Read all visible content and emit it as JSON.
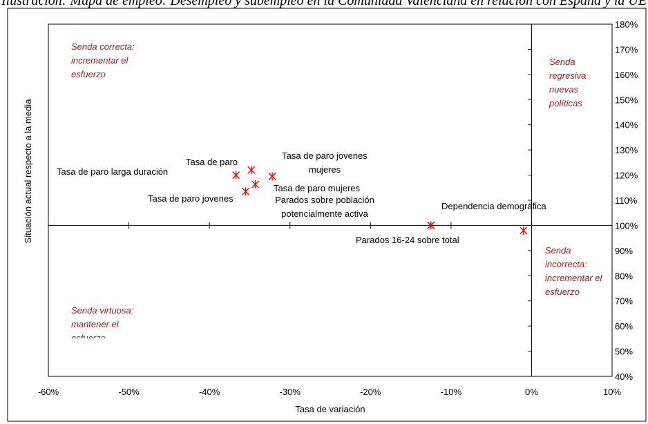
{
  "header_text": "Ilustración: Mapa de empleo: Desempleo y subempleo en la Comunidad Valenciana en relación con España y la UE",
  "chart_data": {
    "type": "scatter",
    "xlabel": "Tasa de variación",
    "ylabel": "Situación actual respecto a la media",
    "xlim": [
      -0.6,
      0.1
    ],
    "ylim": [
      0.4,
      1.8
    ],
    "x_ticks": [
      "-60%",
      "-50%",
      "-40%",
      "-30%",
      "-20%",
      "-10%",
      "0%",
      "10%"
    ],
    "y_ticks": [
      "40%",
      "50%",
      "60%",
      "70%",
      "80%",
      "90%",
      "100%",
      "110%",
      "120%",
      "130%",
      "140%",
      "150%",
      "160%",
      "170%",
      "180%"
    ],
    "grid": false,
    "marker_color": "#ff0000",
    "quadrant_color": "#a01e1e",
    "points": [
      {
        "label": "Tasa de paro larga duración",
        "x": -0.367,
        "y": 1.2
      },
      {
        "label": "Tasa de paro",
        "x": -0.348,
        "y": 1.22
      },
      {
        "label": "Tasa de paro jovenes mujeres",
        "x": -0.322,
        "y": 1.195
      },
      {
        "label": "Tasa de paro mujeres",
        "x": -0.343,
        "y": 1.163
      },
      {
        "label": "Tasa de paro jovenes",
        "x": -0.355,
        "y": 1.135
      },
      {
        "label": "Parados sobre población potencialmente activa",
        "x": -0.125,
        "y": 1.0
      },
      {
        "label": "Parados 16-24 sobre total",
        "x": -0.125,
        "y": 1.0
      },
      {
        "label": "Dependencia demográfica",
        "x": -0.01,
        "y": 0.98
      }
    ],
    "quadrants": [
      {
        "lines": [
          "Senda correcta:",
          "incrementar el",
          "esfuerzo"
        ]
      },
      {
        "lines": [
          "Senda",
          "regresiva",
          "nuevas",
          "políticas"
        ]
      },
      {
        "lines": [
          "Senda virtuosa:",
          "mantener el",
          "esfuerzo"
        ]
      },
      {
        "lines": [
          "Senda",
          "incorrecta:",
          "incrementar el",
          "esfuerzo"
        ]
      }
    ]
  }
}
